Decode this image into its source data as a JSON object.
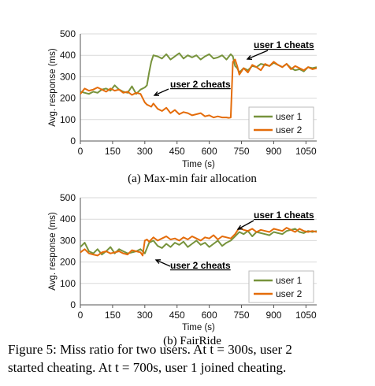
{
  "chart_data": [
    {
      "type": "line",
      "subcaption": "(a) Max-min fair allocation",
      "xlabel": "Time (s)",
      "ylabel": "Avg. response (ms)",
      "xlim": [
        0,
        1100
      ],
      "ylim": [
        0,
        500
      ],
      "xticks": [
        "0",
        "150",
        "300",
        "450",
        "600",
        "750",
        "900",
        "1050"
      ],
      "yticks": [
        "0",
        "100",
        "200",
        "300",
        "400",
        "500"
      ],
      "grid": "horizontal",
      "legend_position": "bottom-right",
      "annotations": [
        {
          "text": "user 1 cheats",
          "x": 700,
          "y": 385,
          "series": "user 1"
        },
        {
          "text": "user 2 cheats",
          "x": 300,
          "y": 210,
          "series": "user 2"
        }
      ],
      "series": [
        {
          "name": "user 1",
          "color": "#77933c",
          "x": [
            0,
            20,
            40,
            60,
            80,
            100,
            120,
            140,
            160,
            180,
            200,
            220,
            240,
            260,
            280,
            300,
            310,
            320,
            330,
            340,
            360,
            380,
            400,
            420,
            440,
            460,
            480,
            500,
            520,
            540,
            560,
            580,
            600,
            620,
            640,
            660,
            680,
            700,
            710,
            720,
            730,
            740,
            760,
            780,
            800,
            820,
            840,
            860,
            880,
            900,
            920,
            940,
            960,
            980,
            1000,
            1020,
            1040,
            1060,
            1080,
            1100
          ],
          "y": [
            230,
            225,
            220,
            230,
            225,
            240,
            245,
            235,
            260,
            240,
            230,
            225,
            255,
            220,
            240,
            250,
            260,
            320,
            370,
            400,
            395,
            385,
            405,
            380,
            395,
            410,
            385,
            400,
            390,
            400,
            380,
            395,
            405,
            385,
            390,
            400,
            380,
            405,
            395,
            350,
            340,
            320,
            340,
            330,
            350,
            345,
            360,
            355,
            350,
            365,
            355,
            345,
            360,
            340,
            330,
            335,
            325,
            345,
            340,
            345
          ]
        },
        {
          "name": "user 2",
          "color": "#e46c0a",
          "x": [
            0,
            20,
            40,
            60,
            80,
            100,
            120,
            140,
            160,
            180,
            200,
            220,
            240,
            260,
            280,
            300,
            310,
            320,
            330,
            340,
            360,
            380,
            400,
            420,
            440,
            460,
            480,
            500,
            520,
            540,
            560,
            580,
            600,
            620,
            640,
            660,
            680,
            690,
            700,
            710,
            720,
            730,
            740,
            760,
            780,
            800,
            820,
            840,
            860,
            880,
            900,
            920,
            940,
            960,
            980,
            1000,
            1020,
            1040,
            1060,
            1080,
            1100
          ],
          "y": [
            220,
            245,
            235,
            240,
            250,
            240,
            230,
            245,
            235,
            240,
            225,
            230,
            215,
            225,
            220,
            180,
            170,
            165,
            160,
            175,
            150,
            140,
            155,
            130,
            145,
            125,
            135,
            130,
            120,
            125,
            130,
            115,
            120,
            110,
            115,
            110,
            110,
            108,
            110,
            370,
            380,
            350,
            310,
            340,
            320,
            355,
            345,
            330,
            360,
            350,
            370,
            355,
            345,
            360,
            335,
            350,
            340,
            330,
            345,
            335,
            340
          ]
        }
      ]
    },
    {
      "type": "line",
      "subcaption": "(b) FairRide",
      "xlabel": "Time (s)",
      "ylabel": "Avg. response (ms)",
      "xlim": [
        0,
        1100
      ],
      "ylim": [
        0,
        500
      ],
      "xticks": [
        "0",
        "150",
        "300",
        "450",
        "600",
        "750",
        "900",
        "1050"
      ],
      "yticks": [
        "0",
        "100",
        "200",
        "300",
        "400",
        "500"
      ],
      "grid": "horizontal",
      "legend_position": "bottom-right",
      "annotations": [
        {
          "text": "user 1 cheats",
          "x": 700,
          "y": 360,
          "series": "user 1"
        },
        {
          "text": "user 2 cheats",
          "x": 300,
          "y": 260,
          "series": "user 2"
        }
      ],
      "series": [
        {
          "name": "user 1",
          "color": "#77933c",
          "x": [
            0,
            20,
            40,
            60,
            80,
            100,
            120,
            140,
            160,
            180,
            200,
            220,
            240,
            260,
            280,
            300,
            320,
            340,
            360,
            380,
            400,
            420,
            440,
            460,
            480,
            500,
            520,
            540,
            560,
            580,
            600,
            620,
            640,
            660,
            680,
            700,
            720,
            740,
            760,
            780,
            800,
            820,
            840,
            860,
            880,
            900,
            920,
            940,
            960,
            980,
            1000,
            1020,
            1040,
            1060,
            1080,
            1100
          ],
          "y": [
            270,
            290,
            250,
            240,
            260,
            235,
            250,
            270,
            240,
            260,
            250,
            240,
            245,
            250,
            260,
            240,
            290,
            300,
            275,
            265,
            285,
            270,
            290,
            280,
            295,
            270,
            285,
            300,
            280,
            290,
            270,
            285,
            300,
            275,
            290,
            300,
            320,
            340,
            330,
            345,
            320,
            340,
            335,
            330,
            325,
            340,
            335,
            330,
            345,
            350,
            355,
            340,
            335,
            345,
            340,
            345
          ]
        },
        {
          "name": "user 2",
          "color": "#e46c0a",
          "x": [
            0,
            20,
            40,
            60,
            80,
            100,
            120,
            140,
            160,
            180,
            200,
            220,
            240,
            260,
            280,
            290,
            300,
            310,
            320,
            340,
            360,
            380,
            400,
            420,
            440,
            460,
            480,
            500,
            520,
            540,
            560,
            580,
            600,
            620,
            640,
            660,
            680,
            700,
            720,
            740,
            760,
            780,
            800,
            820,
            840,
            860,
            880,
            900,
            920,
            940,
            960,
            980,
            1000,
            1020,
            1040,
            1060,
            1080,
            1100
          ],
          "y": [
            245,
            260,
            240,
            235,
            230,
            245,
            250,
            240,
            245,
            250,
            240,
            235,
            255,
            250,
            245,
            230,
            300,
            305,
            295,
            315,
            300,
            310,
            320,
            305,
            310,
            300,
            315,
            305,
            320,
            310,
            300,
            315,
            310,
            325,
            305,
            320,
            315,
            310,
            330,
            360,
            350,
            345,
            355,
            340,
            350,
            345,
            340,
            355,
            350,
            345,
            360,
            350,
            340,
            355,
            345,
            340,
            345,
            340
          ]
        }
      ]
    }
  ],
  "caption": {
    "line1": "Figure 5: Miss ratio for two users.  At t = 300s, user 2",
    "line2": "started cheating. At t = 700s, user 1 joined cheating."
  }
}
